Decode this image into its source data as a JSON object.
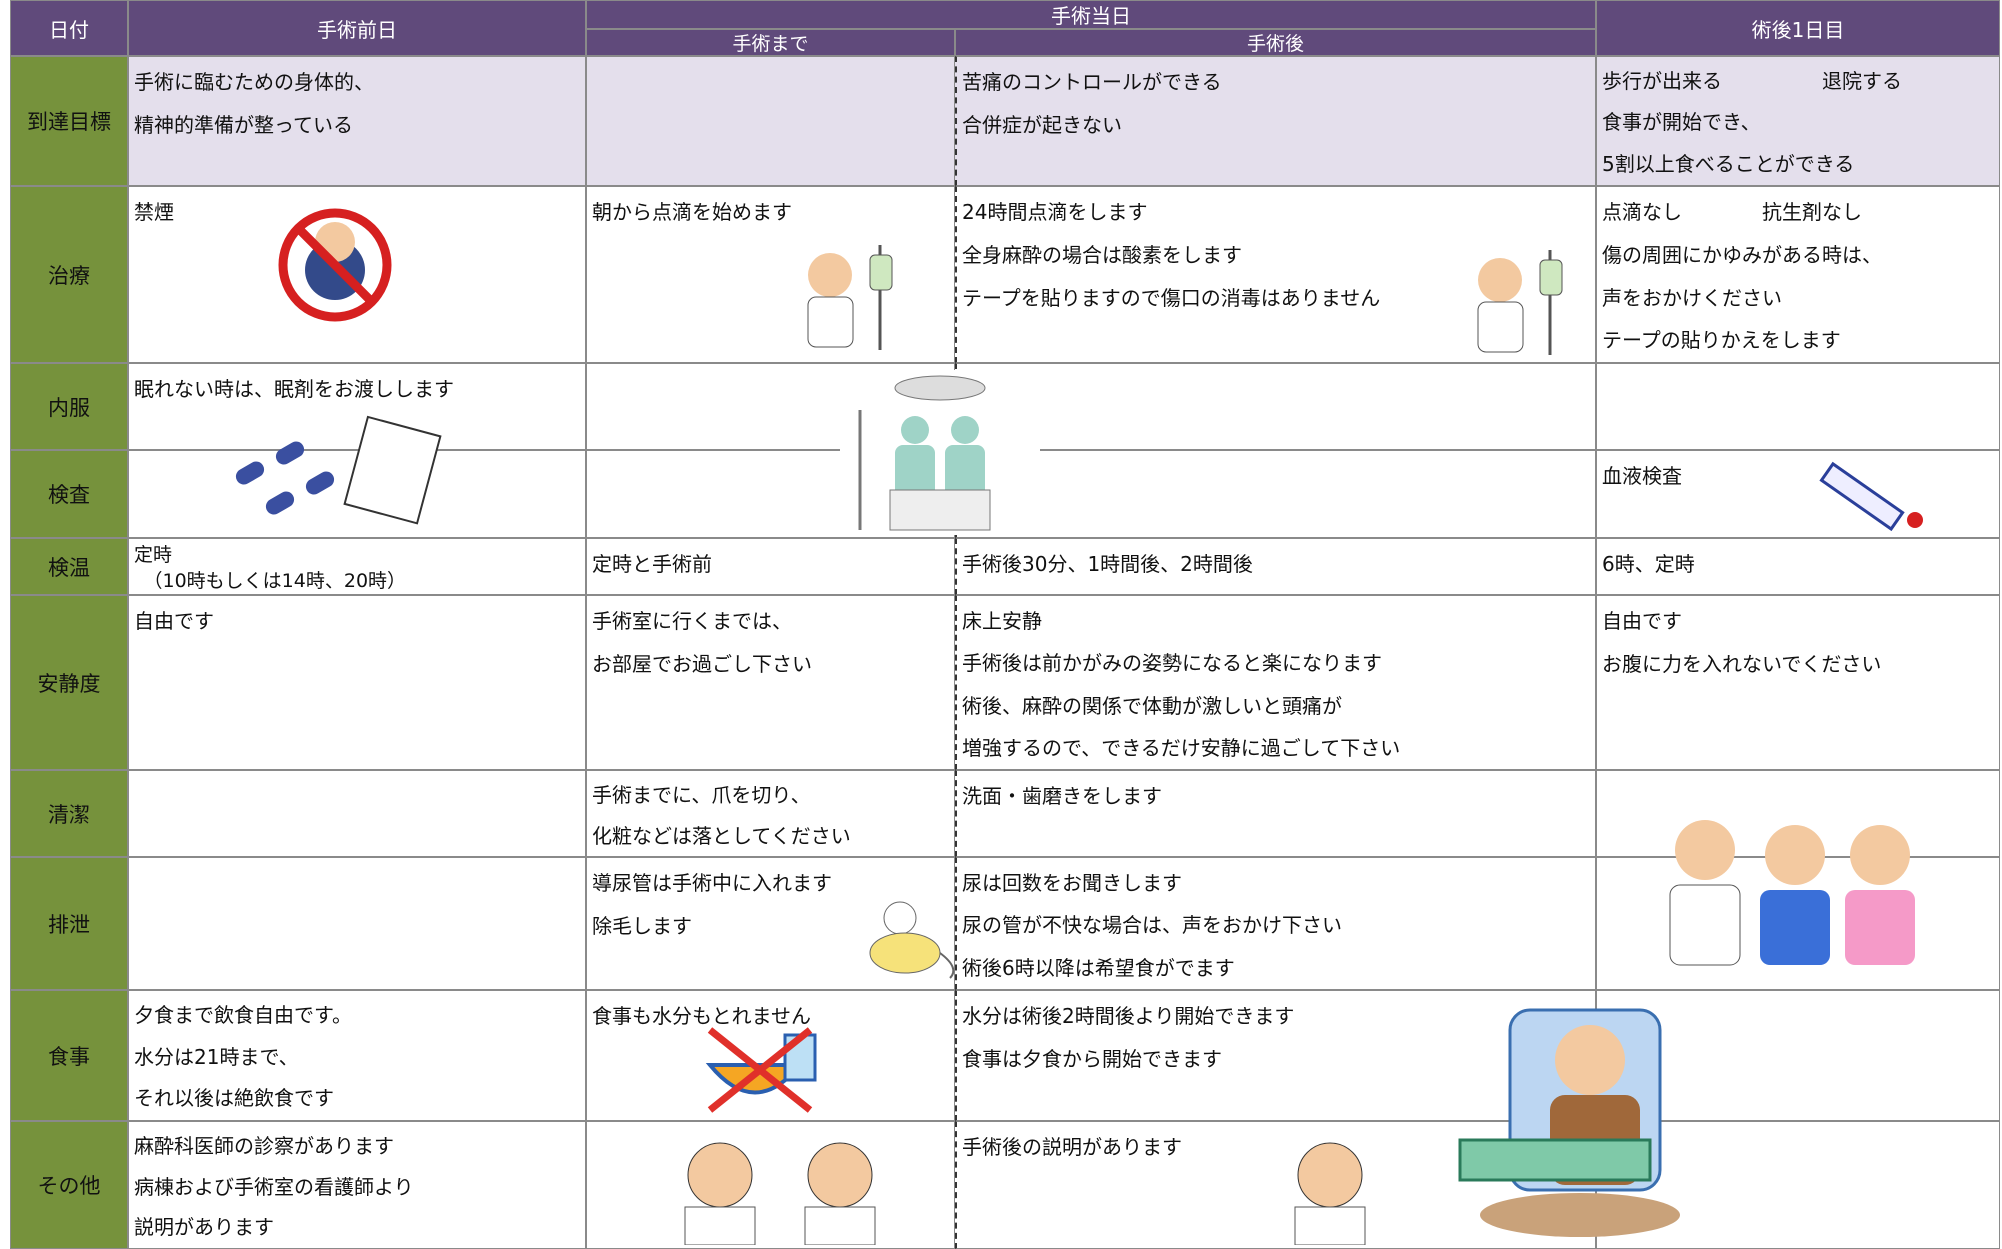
{
  "header": {
    "date": "日付",
    "pre_day": "手術前日",
    "day_of": "手術当日",
    "until": "手術まで",
    "after": "手術後",
    "post1": "術後1日目"
  },
  "rows": [
    {
      "label": "到達目標",
      "cells": [
        [
          "手術に臨むための身体的、",
          "精神的準備が整っている"
        ],
        [],
        [
          "苦痛のコントロールができる",
          "合併症が起きない"
        ],
        [
          "歩行が出来る　　　　　退院する",
          "食事が開始でき、",
          "5割以上食べることができる"
        ]
      ]
    },
    {
      "label": "治療",
      "cells": [
        [
          "禁煙"
        ],
        [
          "朝から点滴を始めます"
        ],
        [
          "24時間点滴をします",
          "全身麻酔の場合は酸素をします",
          "テープを貼りますので傷口の消毒はありません"
        ],
        [
          "点滴なし　　　　抗生剤なし",
          "傷の周囲にかゆみがある時は、",
          "声をおかけください",
          "テープの貼りかえをします"
        ]
      ]
    },
    {
      "label": "内服",
      "cells": [
        [
          "眠れない時は、眠剤をお渡しします"
        ],
        [],
        [],
        []
      ]
    },
    {
      "label": "検査",
      "cells": [
        [],
        [],
        [],
        [
          "血液検査"
        ]
      ]
    },
    {
      "label": "検温",
      "cells": [
        [
          "定時",
          "　（10時もしくは14時、20時）"
        ],
        [
          "定時と手術前"
        ],
        [
          "手術後30分、1時間後、2時間後"
        ],
        [
          "6時、定時"
        ]
      ]
    },
    {
      "label": "安静度",
      "cells": [
        [
          "自由です"
        ],
        [
          "手術室に行くまでは、",
          "お部屋でお過ごし下さい"
        ],
        [
          "床上安静",
          "手術後は前かがみの姿勢になると楽になります",
          "術後、麻酔の関係で体動が激しいと頭痛が",
          "増強するので、できるだけ安静に過ごして下さい"
        ],
        [
          "自由です",
          "お腹に力を入れないでください"
        ]
      ]
    },
    {
      "label": "清潔",
      "cells": [
        [],
        [
          "手術までに、爪を切り、",
          "化粧などは落としてください"
        ],
        [
          "洗面・歯磨きをします"
        ],
        []
      ]
    },
    {
      "label": "排泄",
      "cells": [
        [],
        [
          "導尿管は手術中に入れます",
          "除毛します"
        ],
        [
          "尿は回数をお聞きします",
          "尿の管が不快な場合は、声をおかけ下さい",
          "術後6時以降は希望食がでます"
        ],
        []
      ]
    },
    {
      "label": "食事",
      "cells": [
        [
          "夕食まで飲食自由です。",
          "水分は21時まで、",
          "それ以後は絶飲食です"
        ],
        [
          "食事も水分もとれません"
        ],
        [
          "水分は術後2時間後より開始できます",
          "食事は夕食から開始できます"
        ],
        []
      ]
    },
    {
      "label": "その他",
      "cells": [
        [
          "麻酔科医師の診察があります",
          "病棟および手術室の看護師より",
          "説明があります"
        ],
        [],
        [
          "手術後の説明があります"
        ],
        []
      ]
    }
  ]
}
